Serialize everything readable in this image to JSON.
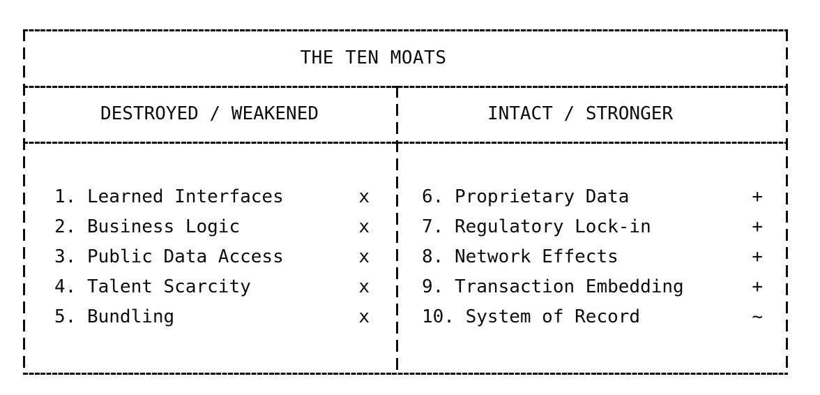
{
  "colors": {
    "ink": "#0d0d0d",
    "background": "#ffffff"
  },
  "table": {
    "title": "THE TEN MOATS",
    "columns": [
      {
        "header": "DESTROYED / WEAKENED",
        "items": [
          {
            "text": "1. Learned Interfaces",
            "marker": "x"
          },
          {
            "text": "2. Business Logic",
            "marker": "x"
          },
          {
            "text": "3. Public Data Access",
            "marker": "x"
          },
          {
            "text": "4. Talent Scarcity",
            "marker": "x"
          },
          {
            "text": "5. Bundling",
            "marker": "x"
          }
        ]
      },
      {
        "header": "INTACT / STRONGER",
        "items": [
          {
            "text": "6. Proprietary Data",
            "marker": "+"
          },
          {
            "text": "7. Regulatory Lock-in",
            "marker": "+"
          },
          {
            "text": "8. Network Effects",
            "marker": "+"
          },
          {
            "text": "9. Transaction Embedding",
            "marker": "+"
          },
          {
            "text": "10. System of Record",
            "marker": "~"
          }
        ]
      }
    ]
  }
}
